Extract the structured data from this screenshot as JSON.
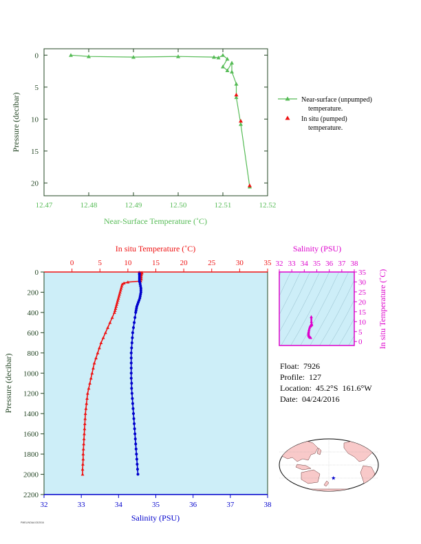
{
  "colors": {
    "green": "#55bb55",
    "red": "#ee1111",
    "blue": "#0000cc",
    "magenta": "#dd00cc",
    "axis_dark": "#224422",
    "panel_bg": "#cdeef8"
  },
  "info": {
    "float_label": "Float:",
    "float_value": "7926",
    "profile_label": "Profile:",
    "profile_value": "127",
    "location_label": "Location:",
    "location_value": "45.2°S  161.6°W",
    "date_label": "Date:",
    "date_value": "04/24/2016"
  },
  "footer": "PMEL/NOAA  03/2016",
  "chart_data": [
    {
      "id": "near_surface",
      "type": "line",
      "xlabel": "Near-Surface Temperature (˚C)",
      "ylabel": "Pressure (decibar)",
      "xlim": [
        12.47,
        12.52
      ],
      "ylim": [
        22,
        -1
      ],
      "xticks": [
        12.47,
        12.48,
        12.49,
        12.5,
        12.51,
        12.52
      ],
      "yticks": [
        0,
        5,
        10,
        15,
        20
      ],
      "grid": false,
      "legend": "right",
      "series": [
        {
          "name": "Near-surface (unpumped) temperature.",
          "marker": "triangle",
          "x": [
            12.476,
            12.48,
            12.49,
            12.5,
            12.508,
            12.509,
            12.51,
            12.511,
            12.51,
            12.511,
            12.512,
            12.512,
            12.513,
            12.513,
            12.514,
            12.516
          ],
          "y": [
            0.0,
            0.2,
            0.3,
            0.2,
            0.3,
            0.4,
            0.0,
            0.6,
            1.8,
            2.4,
            1.2,
            2.6,
            4.5,
            6.6,
            10.8,
            20.6
          ]
        },
        {
          "name": "In situ (pumped) temperature.",
          "marker": "triangle",
          "x": [
            12.513,
            12.514,
            12.516
          ],
          "y": [
            6.2,
            10.3,
            20.4
          ]
        }
      ]
    },
    {
      "id": "profile",
      "type": "line",
      "top_axis": {
        "label": "In situ Temperature (˚C)",
        "xlim": [
          -5,
          35
        ],
        "ticks": [
          0,
          5,
          10,
          15,
          20,
          25,
          30,
          35
        ]
      },
      "bottom_axis": {
        "label": "Salinity (PSU)",
        "xlim": [
          32,
          38
        ],
        "ticks": [
          32,
          33,
          34,
          35,
          36,
          37,
          38
        ]
      },
      "ylabel": "Pressure (decibar)",
      "ylim": [
        2200,
        0
      ],
      "yticks": [
        0,
        200,
        400,
        600,
        800,
        1000,
        1200,
        1400,
        1600,
        1800,
        2000,
        2200
      ],
      "series": [
        {
          "name": "In situ Temperature",
          "marker": "triangle",
          "pressure": [
            5,
            10,
            20,
            30,
            50,
            70,
            90,
            100,
            110,
            120,
            140,
            160,
            180,
            200,
            220,
            240,
            260,
            280,
            300,
            320,
            340,
            360,
            380,
            400,
            450,
            500,
            550,
            600,
            650,
            700,
            750,
            800,
            850,
            900,
            950,
            1000,
            1050,
            1100,
            1150,
            1200,
            1250,
            1300,
            1350,
            1400,
            1450,
            1500,
            1550,
            1600,
            1650,
            1700,
            1750,
            1800,
            1850,
            1900,
            1950,
            2000
          ],
          "temperature": [
            12.5,
            12.5,
            12.4,
            12.4,
            12.4,
            12.4,
            12.3,
            10.0,
            9.3,
            9.0,
            8.9,
            8.8,
            8.7,
            8.6,
            8.5,
            8.4,
            8.3,
            8.2,
            8.1,
            8.0,
            7.9,
            7.8,
            7.7,
            7.6,
            7.2,
            6.8,
            6.4,
            6.0,
            5.6,
            5.2,
            4.9,
            4.6,
            4.3,
            4.0,
            3.8,
            3.6,
            3.4,
            3.2,
            3.0,
            2.8,
            2.7,
            2.6,
            2.5,
            2.4,
            2.35,
            2.3,
            2.25,
            2.2,
            2.15,
            2.1,
            2.05,
            2.0,
            2.0,
            1.95,
            1.9,
            1.9
          ]
        },
        {
          "name": "Salinity",
          "marker": "dot",
          "pressure": [
            5,
            10,
            20,
            30,
            50,
            70,
            90,
            100,
            120,
            140,
            160,
            180,
            200,
            220,
            240,
            260,
            280,
            300,
            320,
            340,
            360,
            380,
            400,
            450,
            500,
            550,
            600,
            650,
            700,
            750,
            800,
            850,
            900,
            950,
            1000,
            1050,
            1100,
            1150,
            1200,
            1250,
            1300,
            1350,
            1400,
            1450,
            1500,
            1550,
            1600,
            1650,
            1700,
            1750,
            1800,
            1850,
            1900,
            1950,
            2000
          ],
          "salinity": [
            34.56,
            34.56,
            34.56,
            34.56,
            34.56,
            34.56,
            34.56,
            34.57,
            34.58,
            34.59,
            34.6,
            34.6,
            34.6,
            34.59,
            34.58,
            34.57,
            34.55,
            34.53,
            34.51,
            34.49,
            34.48,
            34.47,
            34.46,
            34.44,
            34.42,
            34.4,
            34.38,
            34.37,
            34.36,
            34.35,
            34.34,
            34.34,
            34.34,
            34.34,
            34.34,
            34.34,
            34.35,
            34.35,
            34.36,
            34.37,
            34.38,
            34.39,
            34.4,
            34.41,
            34.42,
            34.43,
            34.44,
            34.45,
            34.46,
            34.47,
            34.48,
            34.49,
            34.5,
            34.51,
            34.52
          ]
        }
      ]
    },
    {
      "id": "ts_diagram",
      "type": "scatter",
      "xlabel": "Salinity (PSU)",
      "ylabel": "In situ Temperature (˚C)",
      "xlim": [
        32,
        38
      ],
      "ylim": [
        -2,
        35
      ],
      "xticks": [
        32,
        33,
        34,
        35,
        36,
        37,
        38
      ],
      "yticks": [
        0,
        5,
        10,
        15,
        20,
        25,
        30,
        35
      ],
      "density_contours": true,
      "x": [
        34.56,
        34.56,
        34.57,
        34.58,
        34.59,
        34.6,
        34.58,
        34.55,
        34.51,
        34.48,
        34.46,
        34.42,
        34.38,
        34.36,
        34.34,
        34.34,
        34.34,
        34.35,
        34.37,
        34.4,
        34.43,
        34.46,
        34.5,
        34.52
      ],
      "y": [
        12.5,
        12.4,
        10.0,
        9.0,
        8.8,
        8.6,
        8.4,
        8.2,
        8.0,
        7.8,
        7.6,
        6.8,
        6.0,
        5.2,
        4.6,
        4.0,
        3.6,
        3.2,
        2.8,
        2.5,
        2.3,
        2.1,
        2.0,
        1.9
      ]
    },
    {
      "id": "location_map",
      "type": "map",
      "projection": "robinson-pacific-centered",
      "marker_lon": -161.6,
      "marker_lat": -45.2
    }
  ]
}
